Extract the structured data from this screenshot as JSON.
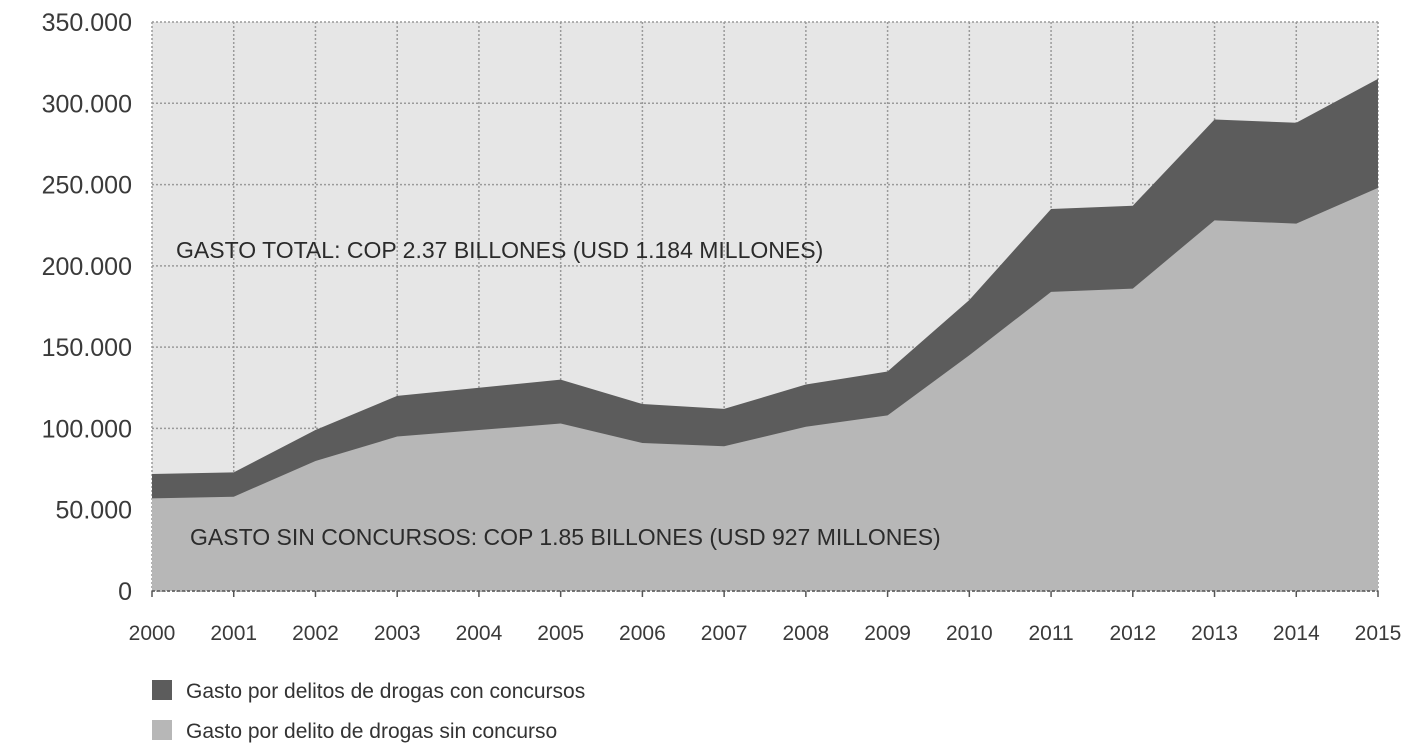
{
  "colors": {
    "plot_background": "#e6e6e6",
    "series_con_concursos": "#5c5c5c",
    "series_sin_concurso": "#b7b7b7",
    "grid": "#9a9a9a",
    "axis": "#555555"
  },
  "chart_data": {
    "type": "area",
    "stacked": true,
    "x": [
      "2000",
      "2001",
      "2002",
      "2003",
      "2004",
      "2005",
      "2006",
      "2007",
      "2008",
      "2009",
      "2010",
      "2011",
      "2012",
      "2013",
      "2014",
      "2015"
    ],
    "series": [
      {
        "name": "Gasto por delito de drogas sin concurso",
        "values": [
          57000,
          58000,
          80000,
          95000,
          99000,
          103000,
          91000,
          89000,
          101000,
          108000,
          145000,
          184000,
          186000,
          228000,
          226000,
          248000
        ]
      },
      {
        "name": "Gasto por delitos de drogas con concursos",
        "values": [
          15000,
          15000,
          19000,
          25000,
          26000,
          27000,
          24000,
          23000,
          26000,
          27000,
          34000,
          51000,
          51000,
          62000,
          62000,
          67000
        ]
      }
    ],
    "yticks": [
      "0",
      "50.000",
      "100.000",
      "150.000",
      "200.000",
      "250.000",
      "300.000",
      "350.000"
    ],
    "ylim": [
      0,
      350000
    ],
    "grid": true,
    "legend_position": "bottom-left",
    "annotations": [
      "GASTO TOTAL: COP 2.37 BILLONES (USD 1.184 MILLONES)",
      "GASTO SIN CONCURSOS: COP 1.85 BILLONES (USD 927 MILLONES)"
    ],
    "legend": [
      "Gasto por delitos de drogas con concursos",
      "Gasto por delito de drogas sin concurso"
    ]
  }
}
